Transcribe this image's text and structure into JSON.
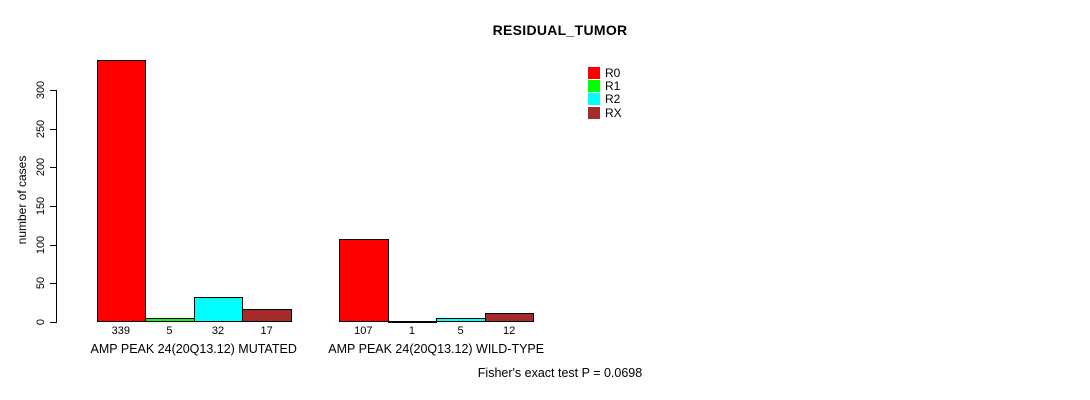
{
  "title": "RESIDUAL_TUMOR",
  "footnote": "Fisher's exact test P = 0.0698",
  "y_axis": {
    "label": "number of cases",
    "ticks": [
      0,
      50,
      100,
      150,
      200,
      250,
      300
    ]
  },
  "legend": {
    "position": "top-right",
    "entries": [
      {
        "label": "R0",
        "color": "#ff0000"
      },
      {
        "label": "R1",
        "color": "#00ff00"
      },
      {
        "label": "R2",
        "color": "#00ffff"
      },
      {
        "label": "RX",
        "color": "#a52a2a"
      }
    ]
  },
  "chart_data": {
    "type": "bar",
    "title": "RESIDUAL_TUMOR",
    "xlabel": "",
    "ylabel": "number of cases",
    "ylim": [
      0,
      300
    ],
    "yticks": [
      0,
      50,
      100,
      150,
      200,
      250,
      300
    ],
    "grid": false,
    "legend_position": "top-right",
    "categories": [
      "AMP PEAK 24(20Q13.12) MUTATED",
      "AMP PEAK 24(20Q13.12) WILD-TYPE"
    ],
    "series": [
      {
        "name": "R0",
        "color": "#ff0000",
        "values": [
          339,
          107
        ]
      },
      {
        "name": "R1",
        "color": "#00ff00",
        "values": [
          5,
          1
        ]
      },
      {
        "name": "R2",
        "color": "#00ffff",
        "values": [
          32,
          5
        ]
      },
      {
        "name": "RX",
        "color": "#a52a2a",
        "values": [
          17,
          12
        ]
      }
    ],
    "bar_value_labels": [
      [
        339,
        5,
        32,
        17
      ],
      [
        107,
        1,
        5,
        12
      ]
    ],
    "annotation": "Fisher's exact test P = 0.0698"
  }
}
